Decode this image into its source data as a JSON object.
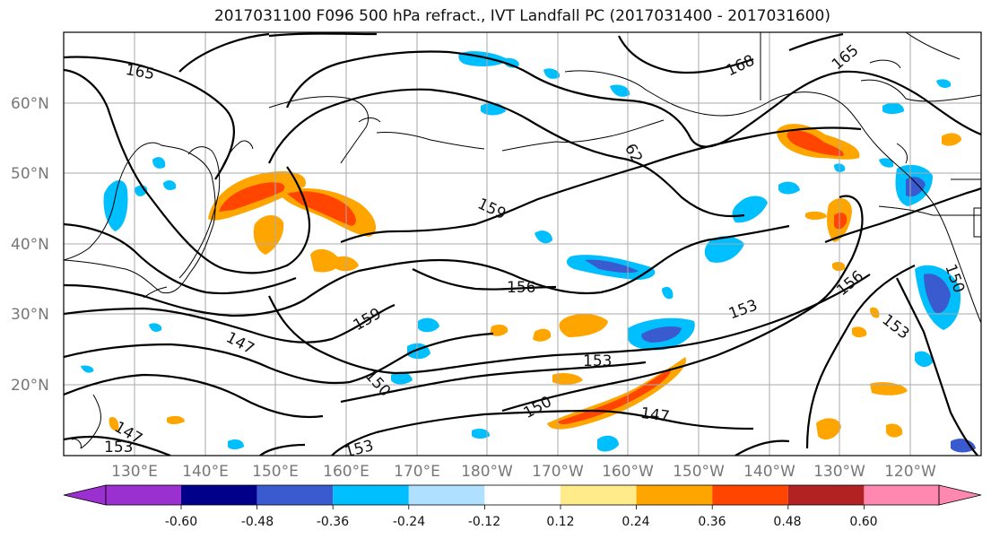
{
  "title": "2017031100 F096 500 hPa refract., IVT Landfall PC (2017031400 - 2017031600)",
  "lat_labels": [
    "60°N",
    "50°N",
    "40°N",
    "30°N",
    "20°N"
  ],
  "lon_labels": [
    "130°E",
    "140°E",
    "150°E",
    "160°E",
    "170°E",
    "180°W",
    "170°W",
    "160°W",
    "150°W",
    "140°W",
    "130°W",
    "120°W"
  ],
  "contour_labels": [
    "165",
    "168",
    "165",
    "62",
    "159",
    "156",
    "159",
    "153",
    "156",
    "147",
    "150",
    "153",
    "150",
    "153",
    "147",
    "147",
    "153",
    "153",
    "150"
  ],
  "colorbar": {
    "tick_labels": [
      "-0.60",
      "-0.48",
      "-0.36",
      "-0.24",
      "-0.12",
      "0.12",
      "0.24",
      "0.36",
      "0.48",
      "0.60"
    ],
    "colors": [
      "#9b30d0",
      "#00008b",
      "#3a5bcf",
      "#00bfff",
      "#b0e0ff",
      "#ffffff",
      "#ffeb8a",
      "#ffa500",
      "#ff4500",
      "#b22222",
      "#ff88b0"
    ]
  },
  "colors": {
    "positive_strong": "#ff4500",
    "positive_mid": "#ffa500",
    "positive_weak": "#ffeb8a",
    "negative_weak": "#b0e0ff",
    "negative_mid": "#00bfff",
    "negative_strong": "#3a5bcf",
    "grid": "#aaaaaa",
    "contour": "#000000"
  }
}
